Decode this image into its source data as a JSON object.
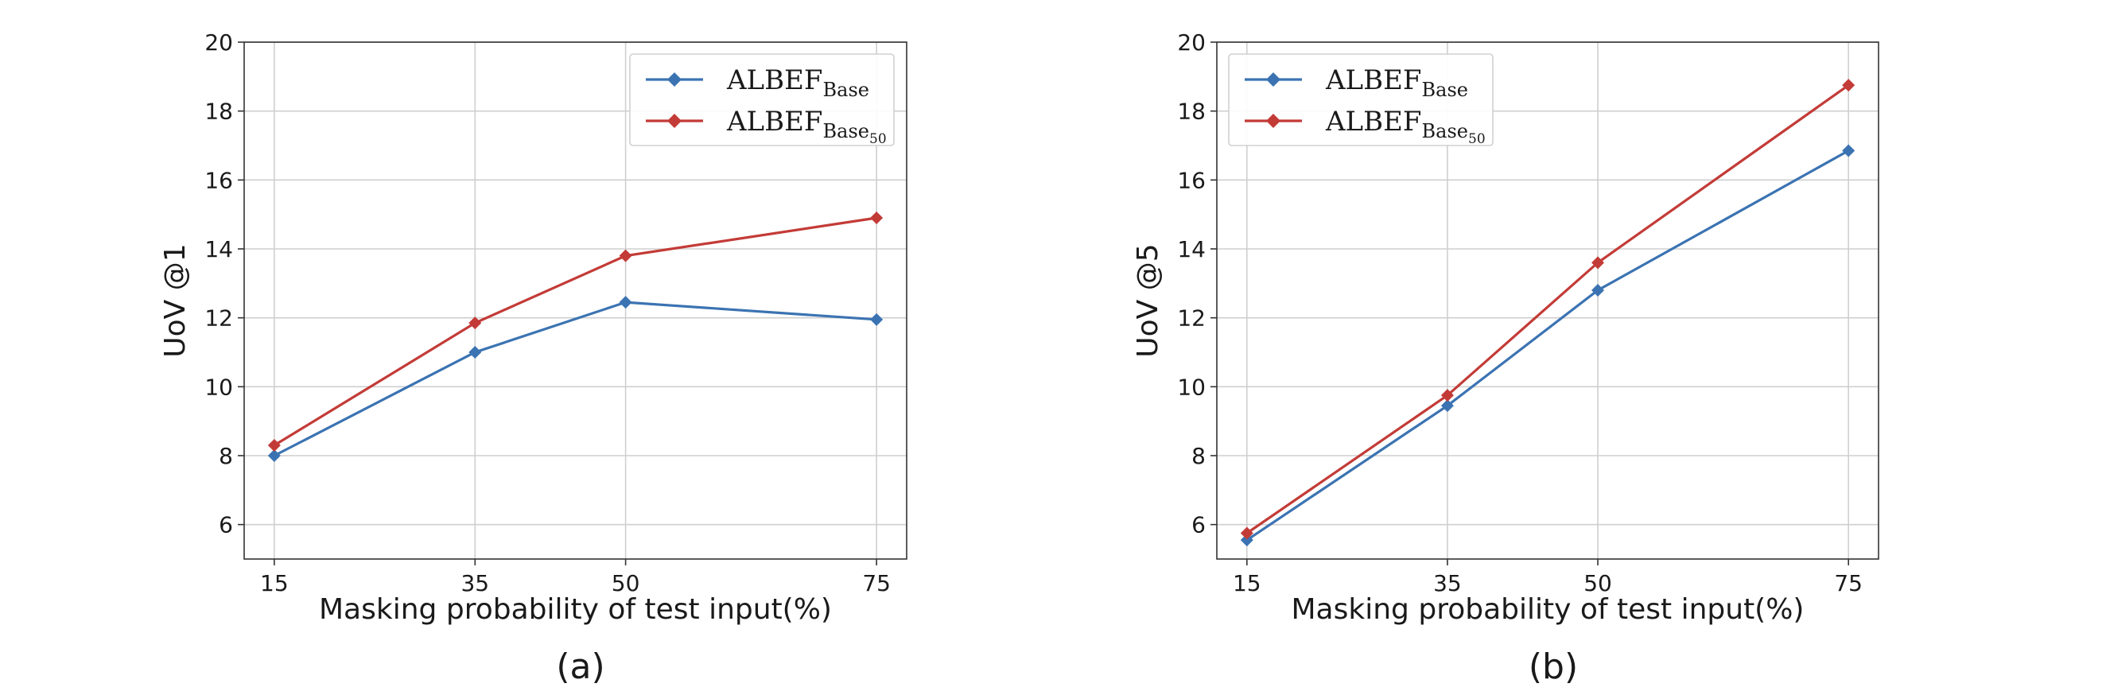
{
  "chart_data": [
    {
      "type": "line",
      "x": [
        15,
        35,
        50,
        75
      ],
      "xlabel": "Masking probability of test input(%)",
      "ylabel": "UoV @1",
      "xlim": [
        12,
        78
      ],
      "ylim": [
        5,
        20
      ],
      "xticks": [
        "15",
        "35",
        "50",
        "75"
      ],
      "yticks": [
        "6",
        "8",
        "10",
        "12",
        "14",
        "16",
        "18",
        "20"
      ],
      "grid": true,
      "legend_position": "top-right",
      "caption": "(a)",
      "series": [
        {
          "name_main": "ALBEF",
          "name_sub": "Base",
          "name_subsub": "",
          "color": "#3b73b2",
          "marker": "diamond",
          "values": [
            8.0,
            11.0,
            12.45,
            11.95
          ]
        },
        {
          "name_main": "ALBEF",
          "name_sub": "Base",
          "name_subsub": "50",
          "color": "#c33b37",
          "marker": "diamond",
          "values": [
            8.3,
            11.85,
            13.8,
            14.9
          ]
        }
      ]
    },
    {
      "type": "line",
      "x": [
        15,
        35,
        50,
        75
      ],
      "xlabel": "Masking probability of test input(%)",
      "ylabel": "UoV @5",
      "xlim": [
        12,
        78
      ],
      "ylim": [
        5,
        20
      ],
      "xticks": [
        "15",
        "35",
        "50",
        "75"
      ],
      "yticks": [
        "6",
        "8",
        "10",
        "12",
        "14",
        "16",
        "18",
        "20"
      ],
      "grid": true,
      "legend_position": "top-left",
      "caption": "(b)",
      "series": [
        {
          "name_main": "ALBEF",
          "name_sub": "Base",
          "name_subsub": "",
          "color": "#3b73b2",
          "marker": "diamond",
          "values": [
            5.55,
            9.45,
            12.8,
            16.85
          ]
        },
        {
          "name_main": "ALBEF",
          "name_sub": "Base",
          "name_subsub": "50",
          "color": "#c33b37",
          "marker": "diamond",
          "values": [
            5.75,
            9.75,
            13.6,
            18.75
          ]
        }
      ]
    }
  ]
}
